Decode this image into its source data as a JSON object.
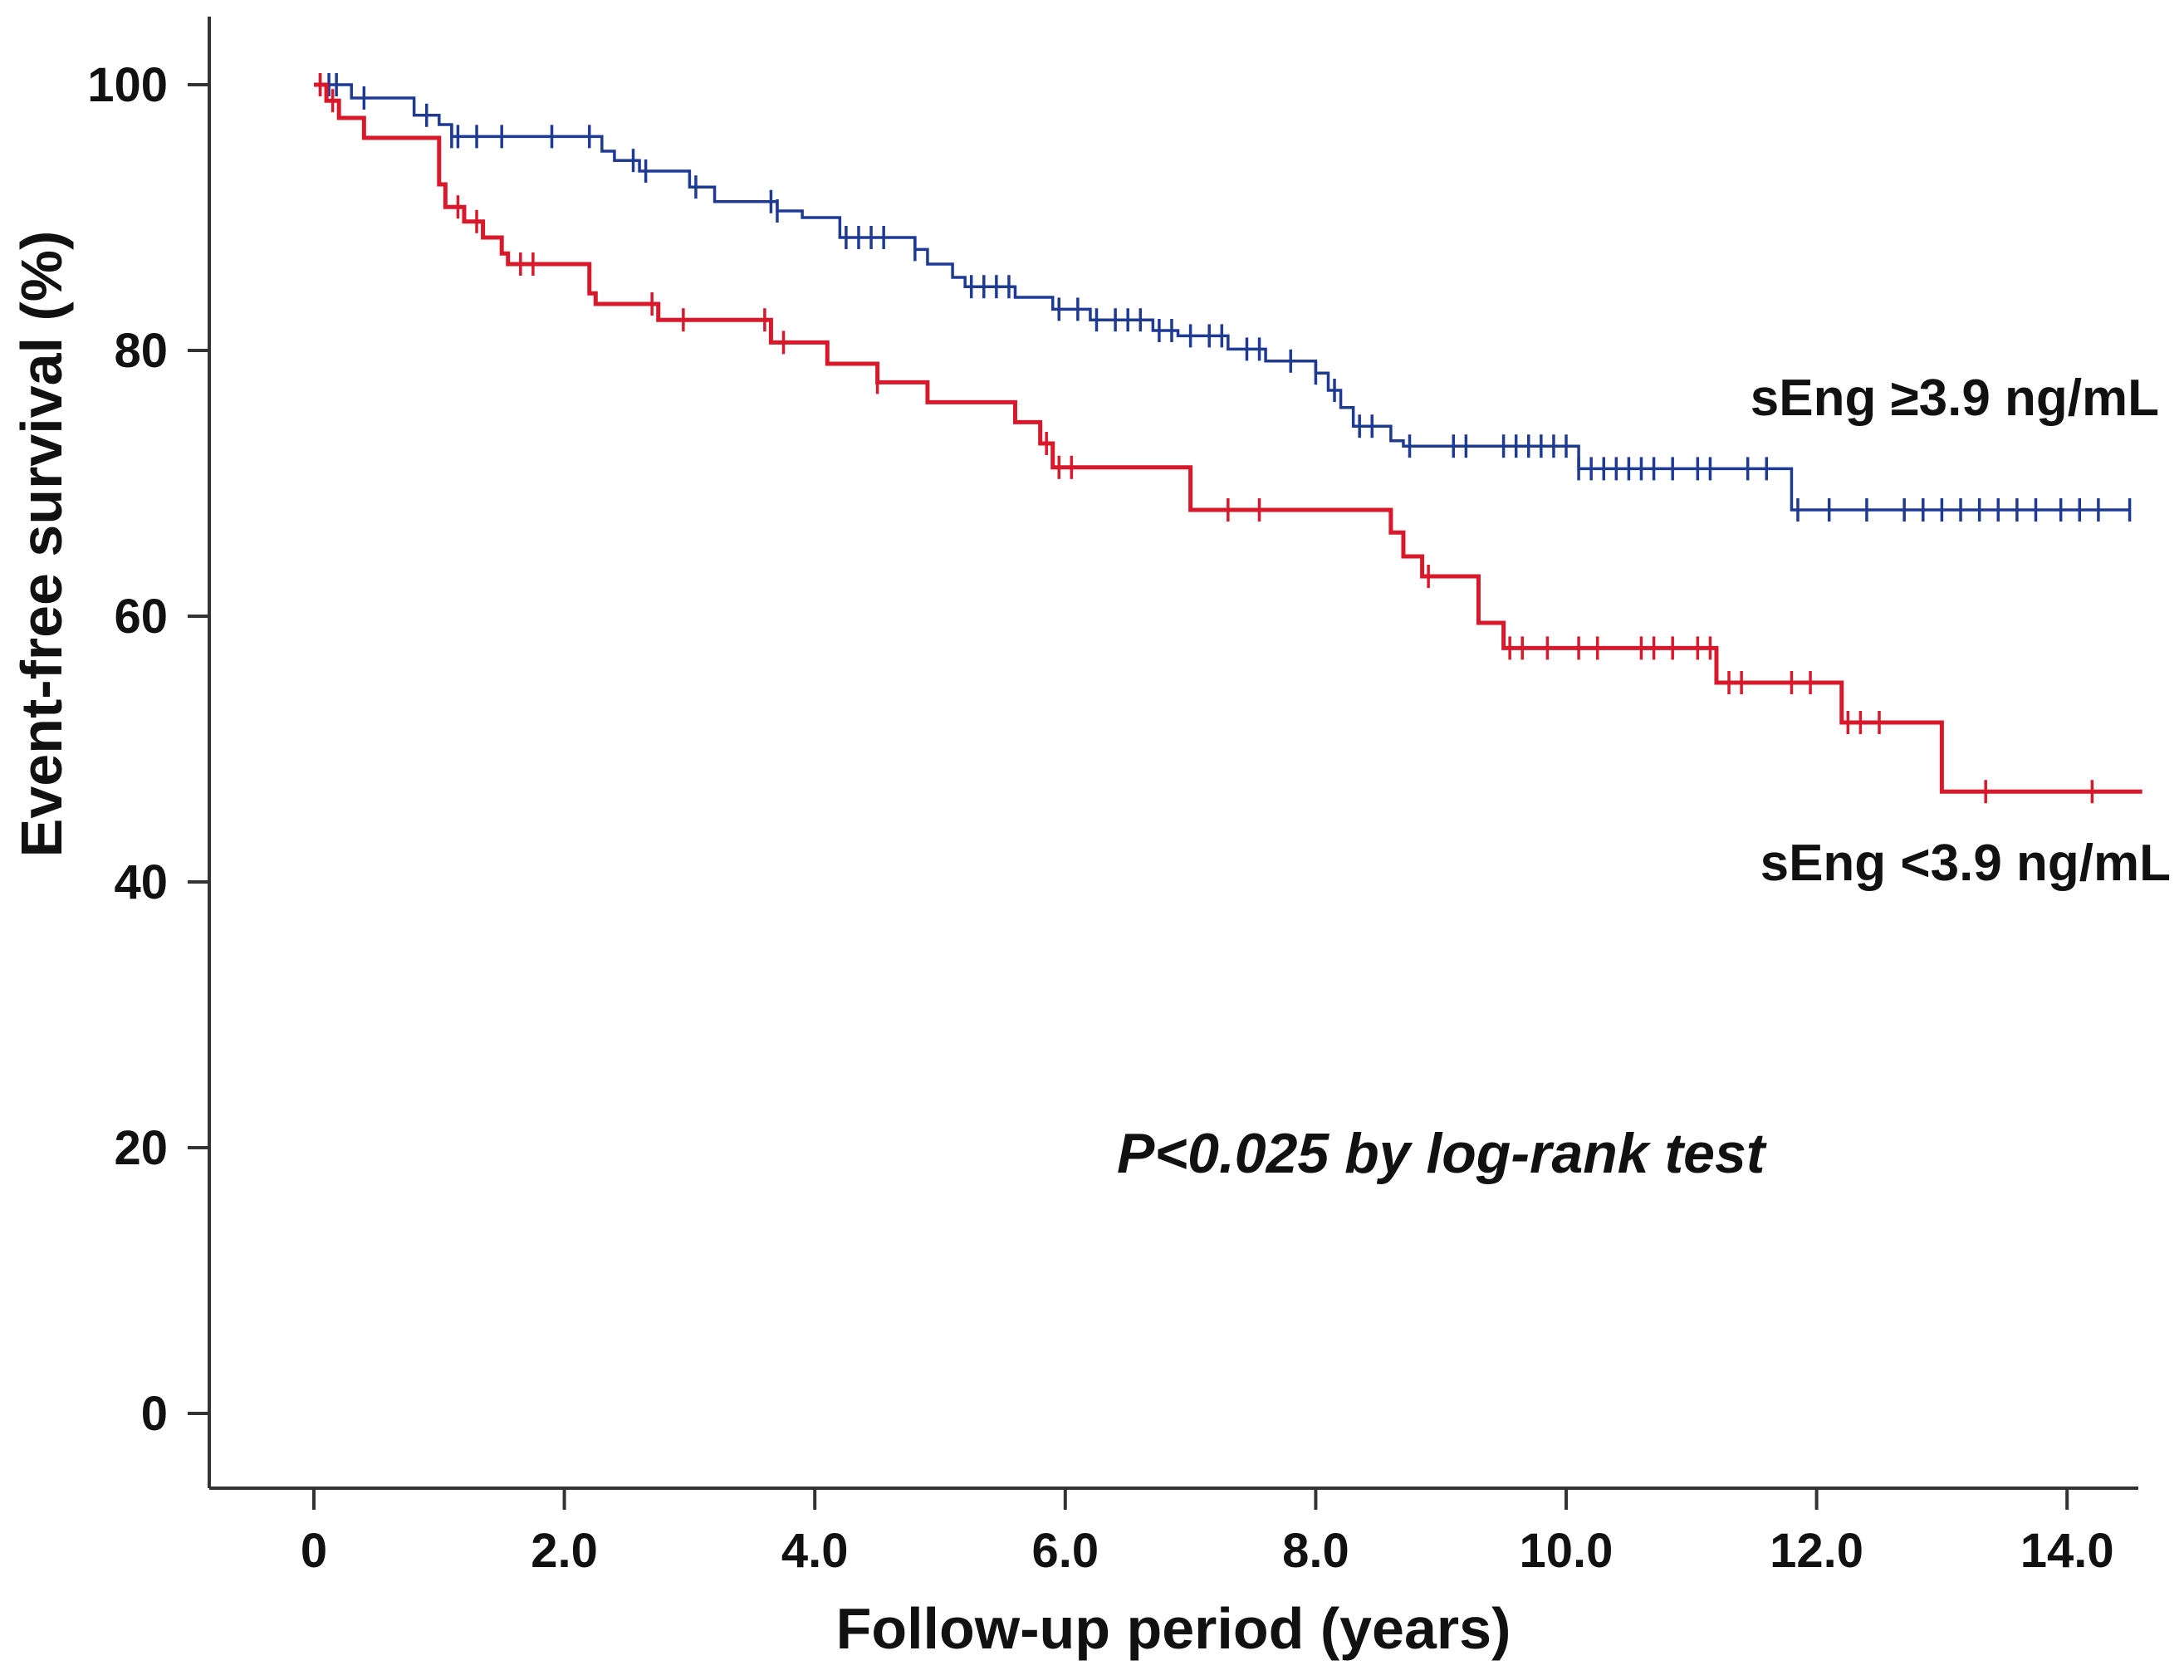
{
  "chart_data": {
    "type": "line",
    "subtype": "kaplan-meier step",
    "title": "",
    "xlabel": "Follow-up period (years)",
    "ylabel": "Event-free survival (%)",
    "xlim": [
      -0.8,
      14.6
    ],
    "ylim": [
      -5.5,
      106
    ],
    "x_ticks": [
      0,
      2,
      4,
      6,
      8,
      10,
      12,
      14
    ],
    "x_tick_labels": [
      "0",
      "2.0",
      "4.0",
      "6.0",
      "8.0",
      "10.0",
      "12.0",
      "14.0"
    ],
    "y_ticks": [
      0,
      20,
      40,
      60,
      80,
      100
    ],
    "y_tick_labels": [
      "0",
      "20",
      "40",
      "60",
      "80",
      "100"
    ],
    "grid": false,
    "annotation": "P<0.025 by log-rank test",
    "series": [
      {
        "name": "sEng ≥3.9 ng/mL",
        "color": "#1f3a93",
        "steps": [
          [
            0,
            100
          ],
          [
            0.3,
            99
          ],
          [
            0.8,
            97.7
          ],
          [
            1.0,
            97
          ],
          [
            1.1,
            96.1
          ],
          [
            2.3,
            95
          ],
          [
            2.4,
            94.3
          ],
          [
            2.6,
            93.5
          ],
          [
            3.0,
            92.3
          ],
          [
            3.2,
            91.2
          ],
          [
            3.7,
            90.5
          ],
          [
            3.9,
            90
          ],
          [
            4.2,
            88.9
          ],
          [
            4.2,
            88.5
          ],
          [
            4.8,
            87.6
          ],
          [
            4.9,
            86.5
          ],
          [
            5.1,
            85.5
          ],
          [
            5.2,
            84.8
          ],
          [
            5.6,
            84
          ],
          [
            5.9,
            83.1
          ],
          [
            6.2,
            82.3
          ],
          [
            6.7,
            81.5
          ],
          [
            6.9,
            81.1
          ],
          [
            7.3,
            80.1
          ],
          [
            7.6,
            79.2
          ],
          [
            8.0,
            78.3
          ],
          [
            8.1,
            77
          ],
          [
            8.2,
            75.7
          ],
          [
            8.3,
            74.3
          ],
          [
            8.6,
            73.2
          ],
          [
            8.7,
            72.8
          ],
          [
            10.1,
            71.1
          ],
          [
            11.8,
            68
          ]
        ],
        "censored": [
          0.05,
          0.12,
          0.18,
          0.4,
          0.9,
          1.1,
          1.15,
          1.3,
          1.5,
          1.9,
          2.2,
          2.55,
          2.65,
          3.05,
          3.65,
          3.7,
          4.25,
          4.35,
          4.45,
          4.55,
          4.8,
          5.25,
          5.35,
          5.45,
          5.55,
          5.95,
          6.1,
          6.25,
          6.4,
          6.5,
          6.6,
          6.75,
          6.85,
          7.0,
          7.15,
          7.25,
          7.45,
          7.55,
          7.8,
          8.0,
          8.15,
          8.35,
          8.45,
          8.75,
          9.1,
          9.2,
          9.5,
          9.6,
          9.7,
          9.8,
          9.9,
          10.0,
          10.1,
          10.2,
          10.3,
          10.4,
          10.5,
          10.6,
          10.7,
          10.85,
          11.05,
          11.15,
          11.45,
          11.6,
          11.85,
          12.1,
          12.4,
          12.7,
          12.85,
          13.0,
          13.15,
          13.3,
          13.45,
          13.6,
          13.75,
          13.95,
          14.1,
          14.25,
          14.5
        ],
        "end_x": 14.5,
        "label": "sEng ≥3.9 ng/mL"
      },
      {
        "name": "sEng <3.9 ng/mL",
        "color": "#d7192b",
        "steps": [
          [
            0,
            100
          ],
          [
            0.1,
            98.8
          ],
          [
            0.2,
            97.5
          ],
          [
            0.4,
            96
          ],
          [
            1.0,
            94.4
          ],
          [
            1.0,
            92.5
          ],
          [
            1.05,
            90.8
          ],
          [
            1.2,
            89.7
          ],
          [
            1.35,
            88.5
          ],
          [
            1.5,
            87.3
          ],
          [
            1.55,
            86.5
          ],
          [
            2.2,
            84.3
          ],
          [
            2.25,
            83.5
          ],
          [
            2.75,
            82.3
          ],
          [
            3.65,
            80.6
          ],
          [
            4.1,
            79
          ],
          [
            4.5,
            77.6
          ],
          [
            4.9,
            76.1
          ],
          [
            5.6,
            74.6
          ],
          [
            5.8,
            73
          ],
          [
            5.9,
            71.2
          ],
          [
            7.0,
            68
          ],
          [
            8.6,
            66.3
          ],
          [
            8.7,
            64.5
          ],
          [
            8.85,
            63
          ],
          [
            9.3,
            59.5
          ],
          [
            9.5,
            57.6
          ],
          [
            11.2,
            55
          ],
          [
            12.2,
            52
          ],
          [
            13.0,
            46.8
          ]
        ],
        "censored": [
          0.05,
          0.15,
          1.15,
          1.3,
          1.65,
          1.75,
          2.7,
          2.95,
          3.6,
          3.75,
          4.5,
          5.85,
          5.95,
          6.05,
          7.3,
          7.55,
          8.9,
          9.55,
          9.65,
          9.85,
          10.1,
          10.25,
          10.6,
          10.7,
          10.85,
          11.05,
          11.15,
          11.3,
          11.4,
          11.8,
          11.95,
          12.25,
          12.35,
          12.5,
          13.35,
          14.2
        ],
        "end_x": 14.6,
        "label": "sEng <3.9 ng/mL"
      }
    ]
  }
}
